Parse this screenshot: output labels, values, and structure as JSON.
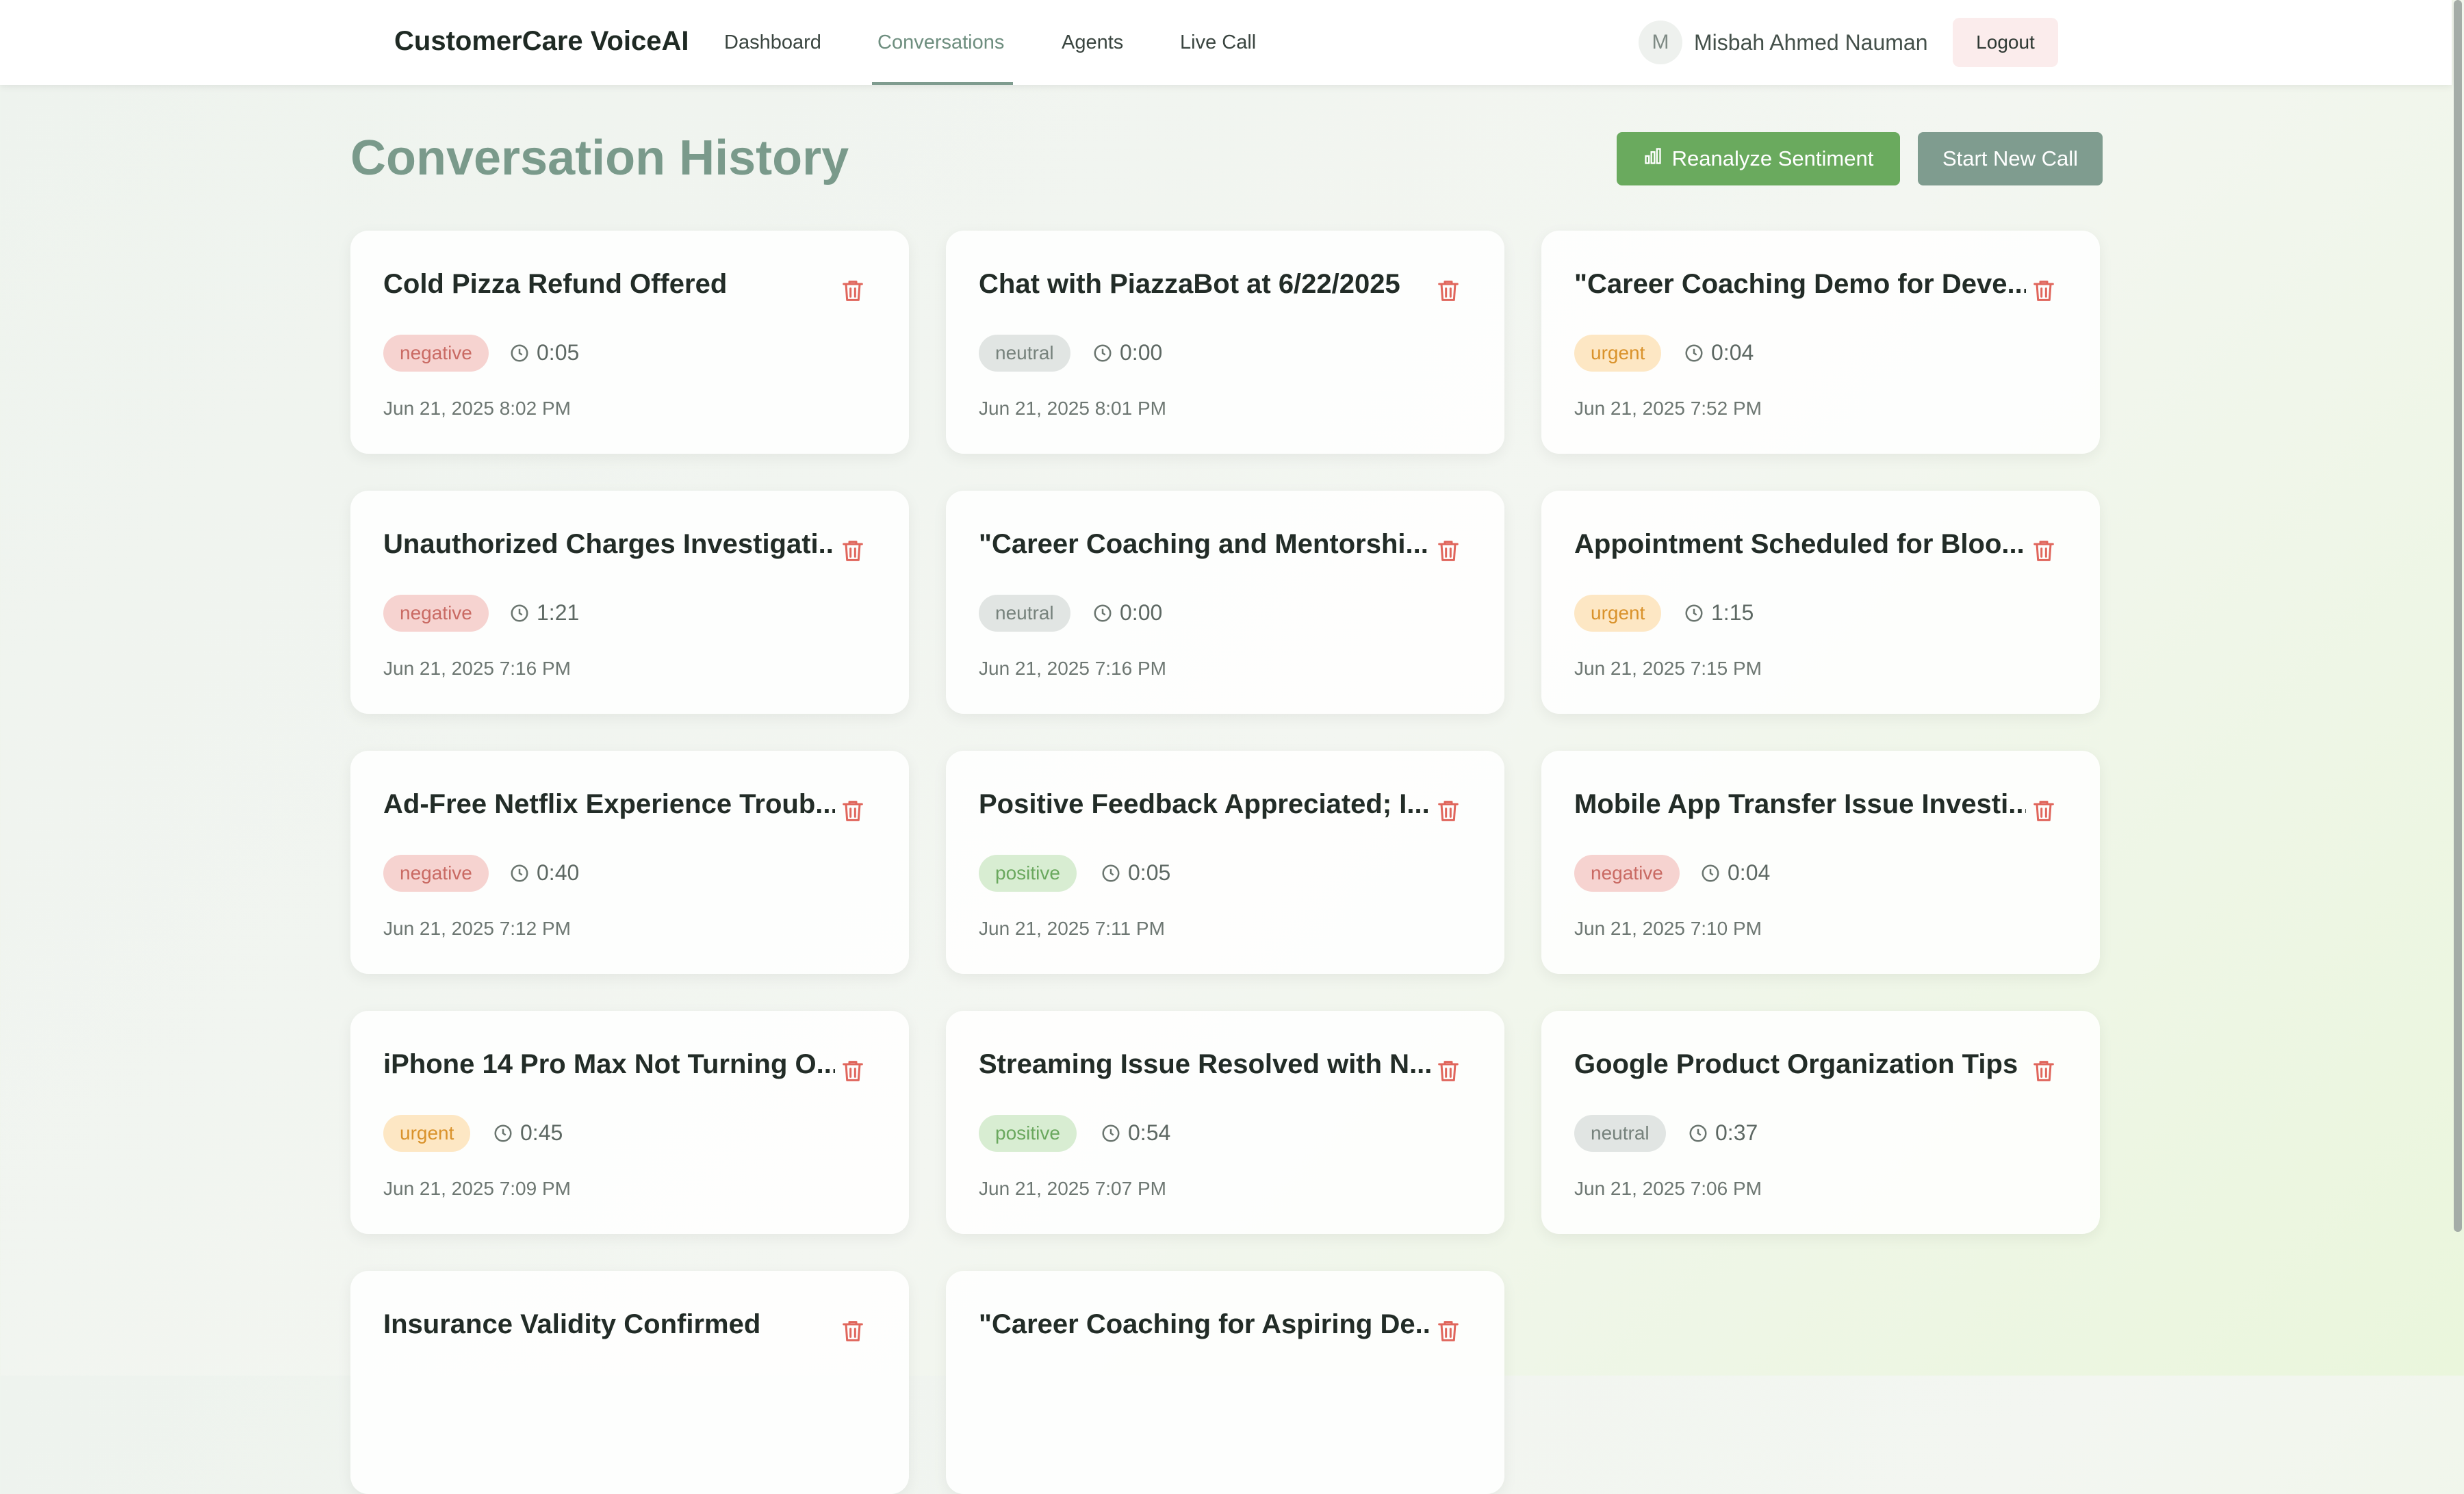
{
  "header": {
    "brand": "CustomerCare VoiceAI",
    "nav": [
      {
        "label": "Dashboard",
        "active": false
      },
      {
        "label": "Conversations",
        "active": true
      },
      {
        "label": "Agents",
        "active": false
      },
      {
        "label": "Live Call",
        "active": false
      }
    ],
    "user": {
      "initial": "M",
      "name": "Misbah Ahmed Nauman"
    },
    "logout_label": "Logout"
  },
  "page": {
    "title": "Conversation History",
    "reanalyze_label": "Reanalyze Sentiment",
    "reanalyze_icon": "bar-chart-icon",
    "new_call_label": "Start New Call"
  },
  "colors": {
    "accent": "#7f9c8f",
    "primary_green": "#6aaa5e",
    "delete_red": "#e0665c",
    "negative": "#c96a63",
    "neutral": "#76827c",
    "urgent": "#d9922b",
    "positive": "#6aa85e"
  },
  "conversations": [
    {
      "title": "Cold Pizza Refund Offered",
      "sentiment": "negative",
      "duration": "0:05",
      "date": "Jun 21, 2025 8:02 PM"
    },
    {
      "title": "Chat with PiazzaBot at 6/22/2025",
      "sentiment": "neutral",
      "duration": "0:00",
      "date": "Jun 21, 2025 8:01 PM"
    },
    {
      "title": "\"Career Coaching Demo for Deve...",
      "sentiment": "urgent",
      "duration": "0:04",
      "date": "Jun 21, 2025 7:52 PM"
    },
    {
      "title": "Unauthorized Charges Investigati...",
      "sentiment": "negative",
      "duration": "1:21",
      "date": "Jun 21, 2025 7:16 PM"
    },
    {
      "title": "\"Career Coaching and Mentorshi...",
      "sentiment": "neutral",
      "duration": "0:00",
      "date": "Jun 21, 2025 7:16 PM"
    },
    {
      "title": "Appointment Scheduled for Bloo...",
      "sentiment": "urgent",
      "duration": "1:15",
      "date": "Jun 21, 2025 7:15 PM"
    },
    {
      "title": "Ad-Free Netflix Experience Troub...",
      "sentiment": "negative",
      "duration": "0:40",
      "date": "Jun 21, 2025 7:12 PM"
    },
    {
      "title": "Positive Feedback Appreciated; I...",
      "sentiment": "positive",
      "duration": "0:05",
      "date": "Jun 21, 2025 7:11 PM"
    },
    {
      "title": "Mobile App Transfer Issue Investi...",
      "sentiment": "negative",
      "duration": "0:04",
      "date": "Jun 21, 2025 7:10 PM"
    },
    {
      "title": "iPhone 14 Pro Max Not Turning O...",
      "sentiment": "urgent",
      "duration": "0:45",
      "date": "Jun 21, 2025 7:09 PM"
    },
    {
      "title": "Streaming Issue Resolved with N...",
      "sentiment": "positive",
      "duration": "0:54",
      "date": "Jun 21, 2025 7:07 PM"
    },
    {
      "title": "Google Product Organization Tips",
      "sentiment": "neutral",
      "duration": "0:37",
      "date": "Jun 21, 2025 7:06 PM"
    },
    {
      "title": "Insurance Validity Confirmed",
      "sentiment": "",
      "duration": "",
      "date": ""
    },
    {
      "title": "\"Career Coaching for Aspiring De...",
      "sentiment": "",
      "duration": "",
      "date": ""
    }
  ]
}
